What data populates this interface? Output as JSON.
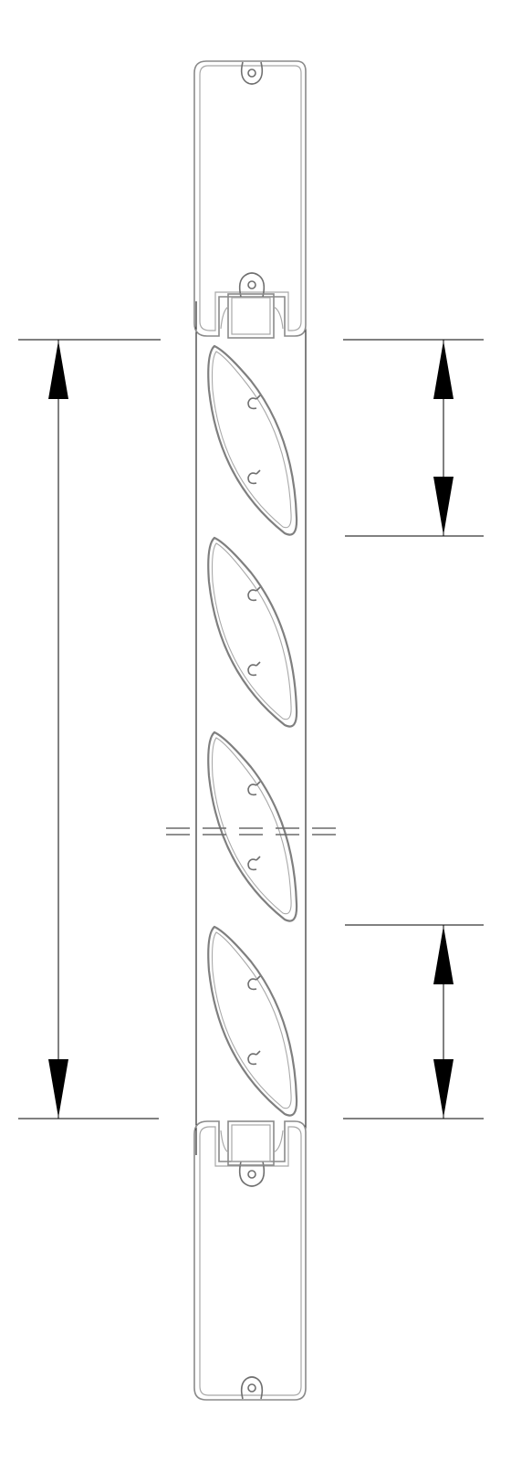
{
  "drawing": {
    "blade_count": 4
  },
  "colors": {
    "line": "#000000",
    "profile": "#8a8a8a",
    "background": "#ffffff"
  }
}
